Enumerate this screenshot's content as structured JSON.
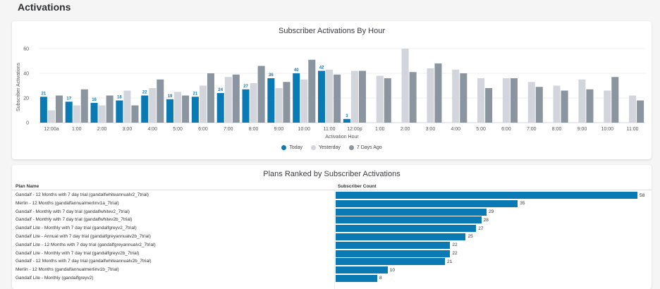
{
  "page": {
    "title": "Activations"
  },
  "colors": {
    "today": "#0a7ab5",
    "yesterday": "#d2d5dc",
    "seven_days": "#8b959f"
  },
  "chart_data": [
    {
      "type": "bar",
      "title": "Subscriber Activations By Hour",
      "xlabel": "Activation Hour",
      "ylabel": "Subscriber Activations",
      "ylim": [
        0,
        60
      ],
      "yticks": [
        "0",
        "20",
        "40",
        "60"
      ],
      "grid": true,
      "legend_position": "bottom",
      "categories": [
        "12:00a",
        "1:00",
        "2:00",
        "3:00",
        "4:00",
        "5:00",
        "6:00",
        "7:00",
        "8:00",
        "9:00",
        "10:00",
        "11:00",
        "12:00p",
        "1:00",
        "2:00",
        "3:00",
        "4:00",
        "5:00",
        "6:00",
        "7:00",
        "8:00",
        "9:00",
        "10:00",
        "11:00"
      ],
      "series": [
        {
          "name": "Today",
          "values": [
            21,
            17,
            16,
            18,
            22,
            19,
            21,
            24,
            27,
            36,
            40,
            42,
            3,
            null,
            null,
            null,
            null,
            null,
            null,
            null,
            null,
            null,
            null,
            null
          ],
          "labels": [
            "21",
            "17",
            "16",
            "18",
            "22",
            "19",
            "21",
            "24",
            "27",
            "36",
            "40",
            "42",
            "3",
            "",
            "",
            "",
            "",
            "",
            "",
            "",
            "",
            "",
            "",
            ""
          ]
        },
        {
          "name": "Yesterday",
          "values": [
            10,
            14,
            14,
            26,
            28,
            25,
            30,
            37,
            32,
            28,
            35,
            43,
            42,
            38,
            60,
            44,
            43,
            36,
            36,
            33,
            30,
            35,
            26,
            22
          ]
        },
        {
          "name": "7 Days Ago",
          "values": [
            22,
            27,
            22,
            14,
            35,
            22,
            40,
            39,
            46,
            33,
            51,
            39,
            42,
            36,
            41,
            48,
            40,
            28,
            36,
            29,
            26,
            27,
            37,
            18
          ]
        }
      ]
    },
    {
      "type": "bar",
      "orientation": "horizontal",
      "title": "Plans Ranked by Subscriber Activations",
      "columns": [
        "Plan Name",
        "Subscriber Count"
      ],
      "xlim": [
        0,
        58
      ],
      "categories": [
        "Gandalf - 12 Months with 7 day trial (gandalfwhiteannualv2_7trial)",
        "Merlin - 12 Months (gandalfannualmerlinv1a_7trial)",
        "Gandalf - Monthly with 7 day trial (gandalfwhitev2_7trial)",
        "Gandalf - Monthly with 7 day trial (gandalfwhitev2b_7trial)",
        "Gandalf Lite - Monthly with 7 day trial (gandalfgreyv2_7trial)",
        "Gandalf Lite - Annual with 7 day trial (gandalfgreyannualv2b_7trial)",
        "Gandalf Lite - 12 Months with 7 day trial (gandalfgreyannualv2_7trial)",
        "Gandalf Lite - Monthly with 7 day trial (gandalfgreyv2b_7trial)",
        "Gandalf - 12 Months with 7 day trial (gandalfwhiteannualv2b_7trial)",
        "Merlin - 12 Months (gandalfannualmerlinv1b_7trial)",
        "Gandalf Lite - Monthly (gandalfgreyv2)"
      ],
      "values": [
        58,
        35,
        29,
        28,
        27,
        25,
        22,
        22,
        21,
        10,
        8
      ],
      "labels": [
        "58",
        "35",
        "29",
        "28",
        "27",
        "25",
        "22",
        "22",
        "21",
        "10",
        "8"
      ]
    }
  ]
}
